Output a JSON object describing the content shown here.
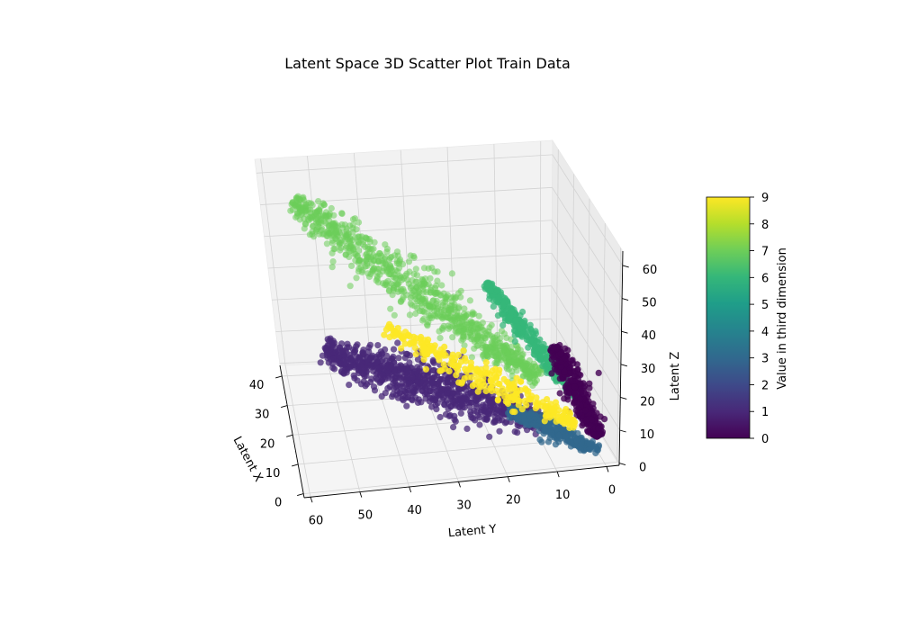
{
  "chart_data": {
    "type": "scatter",
    "projection": "3d",
    "title": "Latent Space 3D Scatter Plot Train Data",
    "xlabel": "Latent X",
    "ylabel": "Latent Y",
    "zlabel": "Latent Z",
    "x_ticks": [
      "0",
      "10",
      "20",
      "30",
      "40"
    ],
    "y_ticks": [
      "0",
      "10",
      "20",
      "30",
      "40",
      "50",
      "60"
    ],
    "z_ticks": [
      "0",
      "10",
      "20",
      "30",
      "40",
      "50",
      "60"
    ],
    "xlim": [
      0,
      45
    ],
    "ylim": [
      0,
      65
    ],
    "zlim": [
      0,
      65
    ],
    "colormap": "viridis",
    "colorbar": {
      "label": "Value in third dimension",
      "ticks": [
        "0",
        "1",
        "2",
        "3",
        "4",
        "5",
        "6",
        "7",
        "8",
        "9"
      ],
      "range": [
        0,
        9
      ]
    },
    "grid": true,
    "clusters": [
      {
        "value": 7,
        "color": "#6ccd5a",
        "x_center": 40,
        "y_center": 32,
        "z_center": 48,
        "spread": "large, elongated"
      },
      {
        "value": 1,
        "color": "#482878",
        "x_center": 35,
        "y_center": 40,
        "z_center": 18,
        "spread": "large, elongated"
      },
      {
        "value": 9,
        "color": "#fde725",
        "x_center": 25,
        "y_center": 25,
        "z_center": 22,
        "spread": "medium"
      },
      {
        "value": 6,
        "color": "#35b779",
        "x_center": 15,
        "y_center": 15,
        "z_center": 45,
        "spread": "narrow, elongated"
      },
      {
        "value": 0,
        "color": "#440154",
        "x_center": 5,
        "y_center": 5,
        "z_center": 30,
        "spread": "narrow"
      },
      {
        "value": 3,
        "color": "#31688e",
        "x_center": 10,
        "y_center": 10,
        "z_center": 5,
        "spread": "small"
      }
    ]
  }
}
